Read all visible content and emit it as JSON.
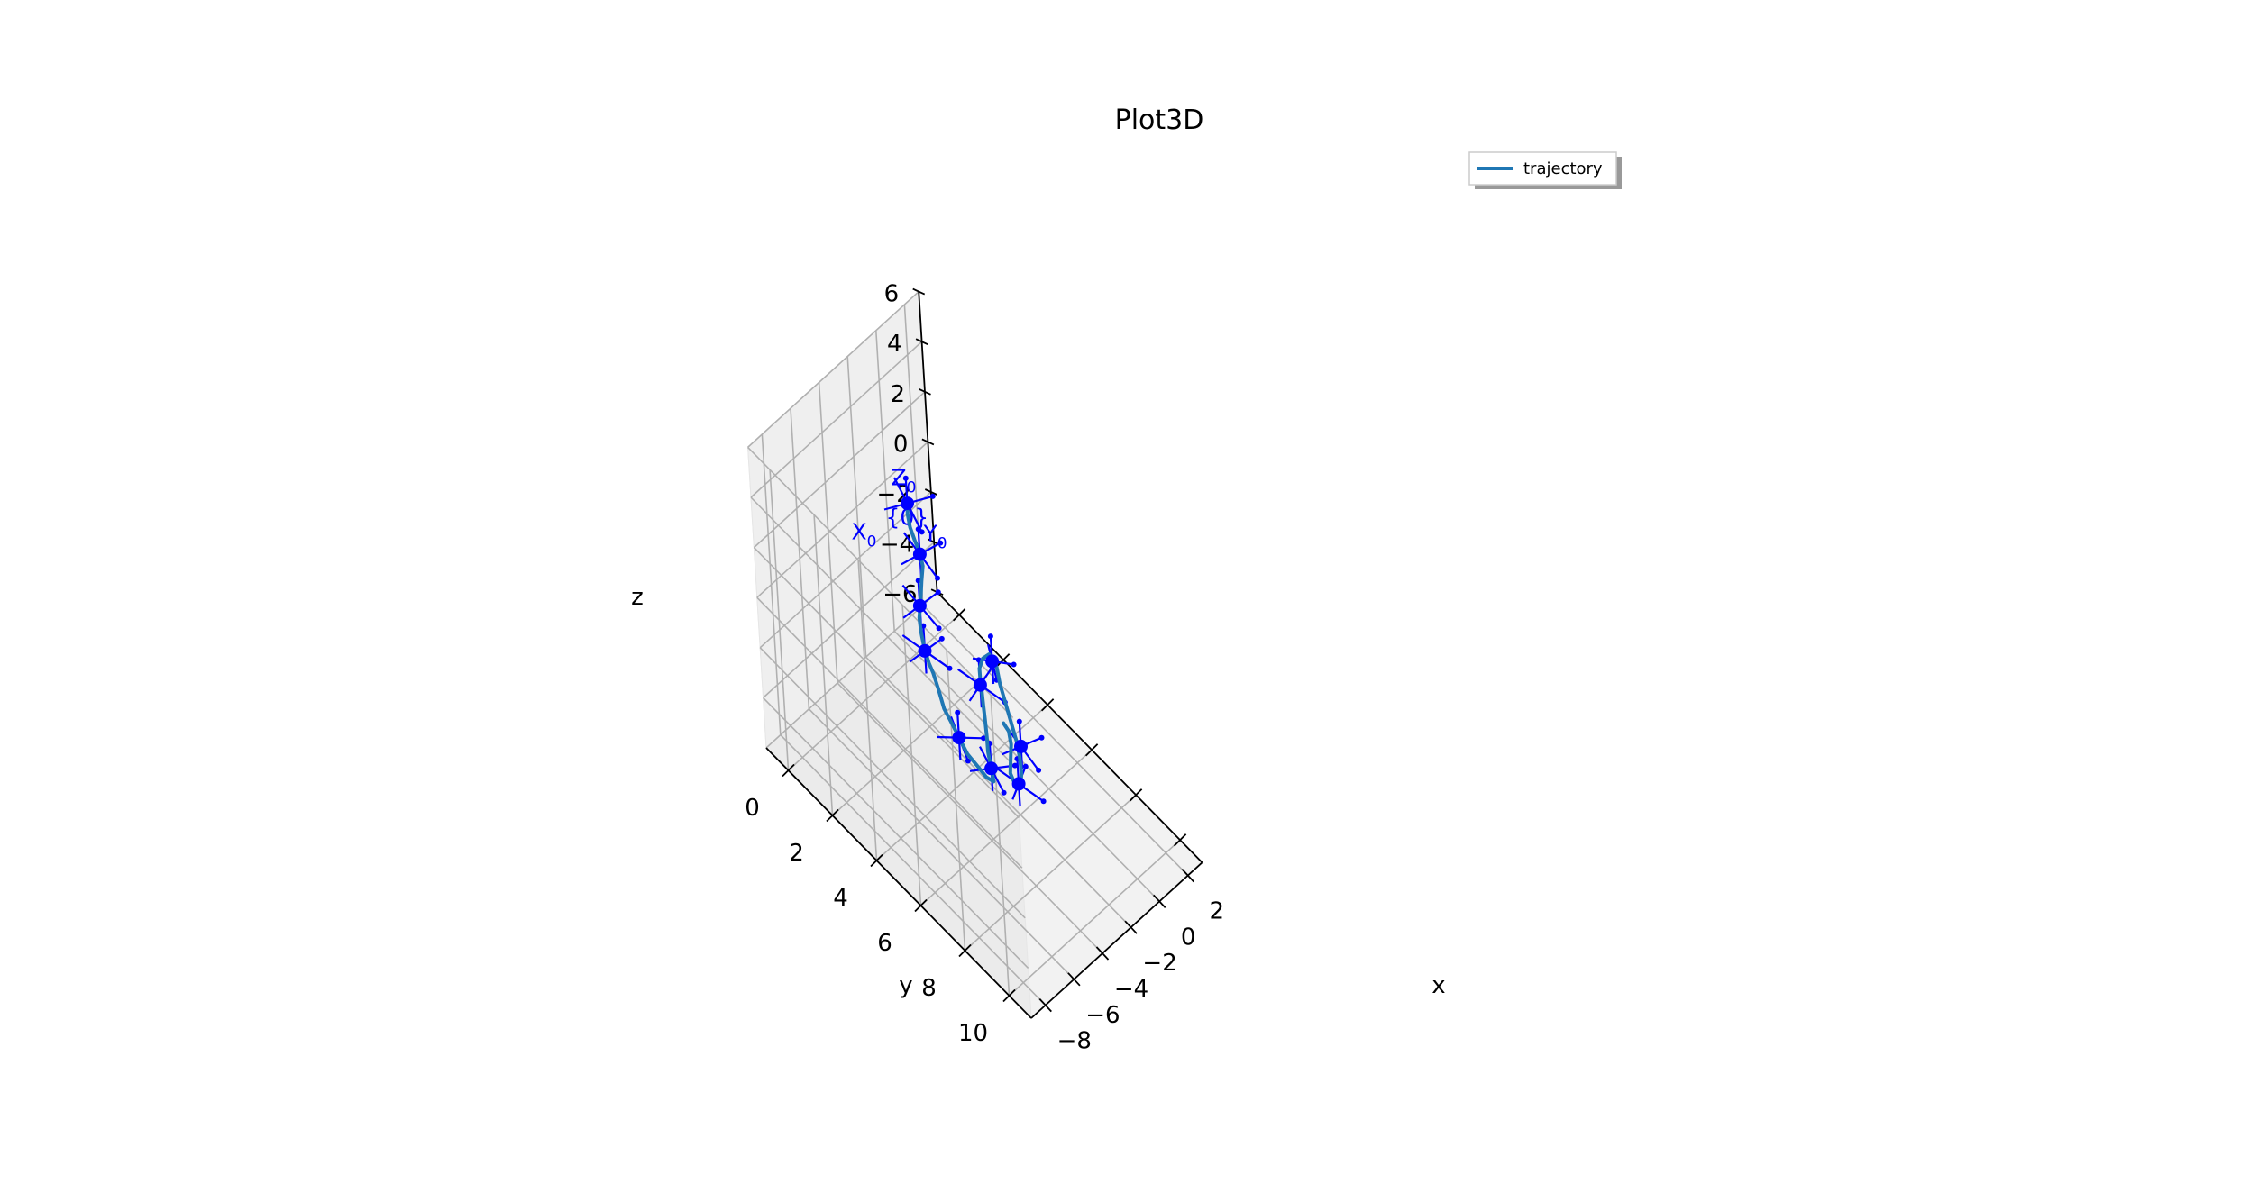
{
  "chart_data": {
    "type": "line",
    "projection": "3d",
    "title": "Plot3D",
    "xlabel": "x",
    "ylabel": "y",
    "zlabel": "z",
    "xlim": [
      -9,
      3
    ],
    "ylim": [
      -1,
      11
    ],
    "zlim": [
      -6,
      6
    ],
    "x_ticks": [
      "−8",
      "−6",
      "−4",
      "−2",
      "0",
      "2"
    ],
    "x_tick_values": [
      -8,
      -6,
      -4,
      -2,
      0,
      2
    ],
    "y_ticks": [
      "0",
      "2",
      "4",
      "6",
      "8",
      "10"
    ],
    "y_tick_values": [
      0,
      2,
      4,
      6,
      8,
      10
    ],
    "z_ticks": [
      "−6",
      "−4",
      "−2",
      "0",
      "2",
      "4",
      "6"
    ],
    "z_tick_values": [
      -6,
      -4,
      -2,
      0,
      2,
      4,
      6
    ],
    "grid": true,
    "legend": {
      "position": "top-right",
      "entries": [
        "trajectory"
      ]
    },
    "series": [
      {
        "name": "trajectory",
        "color": "#1f77b4",
        "points": [
          [
            0,
            0,
            0
          ],
          [
            -0.3,
            0.2,
            -0.1
          ],
          [
            -0.6,
            0.5,
            -0.2
          ],
          [
            -0.9,
            0.9,
            -0.2
          ],
          [
            -1.2,
            1.3,
            -0.1
          ],
          [
            -1.7,
            1.8,
            0.0
          ],
          [
            -2.4,
            2.2,
            0.1
          ],
          [
            -3.1,
            2.6,
            0.0
          ],
          [
            -3.8,
            3.0,
            0.1
          ],
          [
            -4.3,
            3.4,
            0.2
          ],
          [
            -4.7,
            3.8,
            0.1
          ],
          [
            -5.0,
            4.2,
            0.0
          ],
          [
            -5.3,
            4.6,
            0.1
          ],
          [
            -5.7,
            5.1,
            0.1
          ],
          [
            -6.1,
            5.6,
            0.0
          ],
          [
            -6.4,
            6.1,
            0.1
          ],
          [
            -6.6,
            6.6,
            0.0
          ],
          [
            -6.8,
            7.1,
            -0.1
          ],
          [
            -6.7,
            7.5,
            -0.3
          ],
          [
            -6.6,
            7.8,
            -0.5
          ],
          [
            -6.4,
            8.0,
            -0.6
          ],
          [
            -6.1,
            7.7,
            -0.5
          ],
          [
            -5.7,
            7.3,
            -0.4
          ],
          [
            -5.3,
            7.0,
            -0.3
          ],
          [
            -4.8,
            6.6,
            -0.2
          ],
          [
            -4.3,
            6.2,
            -0.3
          ],
          [
            -3.8,
            5.8,
            -0.3
          ],
          [
            -3.3,
            5.4,
            -0.4
          ],
          [
            -2.9,
            5.1,
            -0.5
          ],
          [
            -2.5,
            5.0,
            -0.4
          ],
          [
            -2.2,
            5.1,
            -0.3
          ],
          [
            -2.3,
            5.5,
            -0.4
          ],
          [
            -2.7,
            5.9,
            -0.5
          ],
          [
            -3.1,
            6.4,
            -0.6
          ],
          [
            -3.5,
            6.9,
            -0.7
          ],
          [
            -3.9,
            7.4,
            -0.8
          ],
          [
            -4.3,
            7.8,
            -0.9
          ],
          [
            -4.8,
            8.2,
            -0.9
          ],
          [
            -5.3,
            8.5,
            -0.9
          ],
          [
            -5.6,
            8.5,
            -0.8
          ],
          [
            -5.4,
            8.1,
            -0.7
          ],
          [
            -4.9,
            7.8,
            -0.6
          ],
          [
            -4.4,
            7.5,
            -0.6
          ],
          [
            -4.1,
            7.2,
            -0.5
          ],
          [
            -4.0,
            6.9,
            -0.5
          ]
        ]
      }
    ],
    "frames": {
      "color": "#0000ff",
      "labels": [
        "{0}",
        "X",
        "Y",
        "Z",
        "0",
        "0",
        "0"
      ],
      "origins": [
        [
          0,
          0,
          0
        ],
        [
          -1.3,
          1.4,
          -0.1
        ],
        [
          -3.3,
          2.7,
          0.05
        ],
        [
          -4.8,
          3.9,
          0.1
        ],
        [
          -6.6,
          6.6,
          0.0
        ],
        [
          -6.1,
          7.7,
          -0.5
        ],
        [
          -3.6,
          5.6,
          -0.35
        ],
        [
          -2.3,
          5.3,
          -0.35
        ],
        [
          -3.9,
          7.6,
          -0.85
        ],
        [
          -5.3,
          8.4,
          -0.9
        ]
      ],
      "x_dirs": [
        [
          -0.8,
          1.2,
          0.35
        ],
        [
          1.0,
          0.3,
          0.2
        ],
        [
          1.0,
          0.2,
          0.2
        ],
        [
          0.9,
          0.2,
          0.2
        ],
        [
          0.8,
          0.6,
          0.1
        ],
        [
          0.9,
          0.5,
          0.1
        ],
        [
          1.0,
          -0.1,
          0.1
        ],
        [
          0.6,
          0.6,
          0.1
        ],
        [
          1.0,
          0.3,
          0.1
        ],
        [
          0.8,
          -0.2,
          0.1
        ]
      ],
      "y_dirs": [
        [
          0.9,
          0.6,
          0.35
        ],
        [
          -0.3,
          1.0,
          0.1
        ],
        [
          -0.2,
          1.0,
          0.1
        ],
        [
          0.2,
          1.0,
          0.1
        ],
        [
          -0.6,
          0.8,
          0.1
        ],
        [
          -0.5,
          0.9,
          0.1
        ],
        [
          0.2,
          1.0,
          0.1
        ],
        [
          -0.6,
          0.6,
          0.1
        ],
        [
          -0.3,
          1.0,
          0.1
        ],
        [
          0.2,
          1.0,
          0.1
        ]
      ],
      "z_dirs": [
        [
          0,
          0,
          1
        ],
        [
          0,
          0,
          1
        ],
        [
          0,
          0,
          1
        ],
        [
          0,
          0,
          1
        ],
        [
          0,
          0,
          1
        ],
        [
          0,
          0,
          1
        ],
        [
          0,
          0,
          1
        ],
        [
          0,
          0,
          1
        ],
        [
          0,
          0,
          1
        ],
        [
          0,
          0,
          1
        ]
      ]
    }
  }
}
